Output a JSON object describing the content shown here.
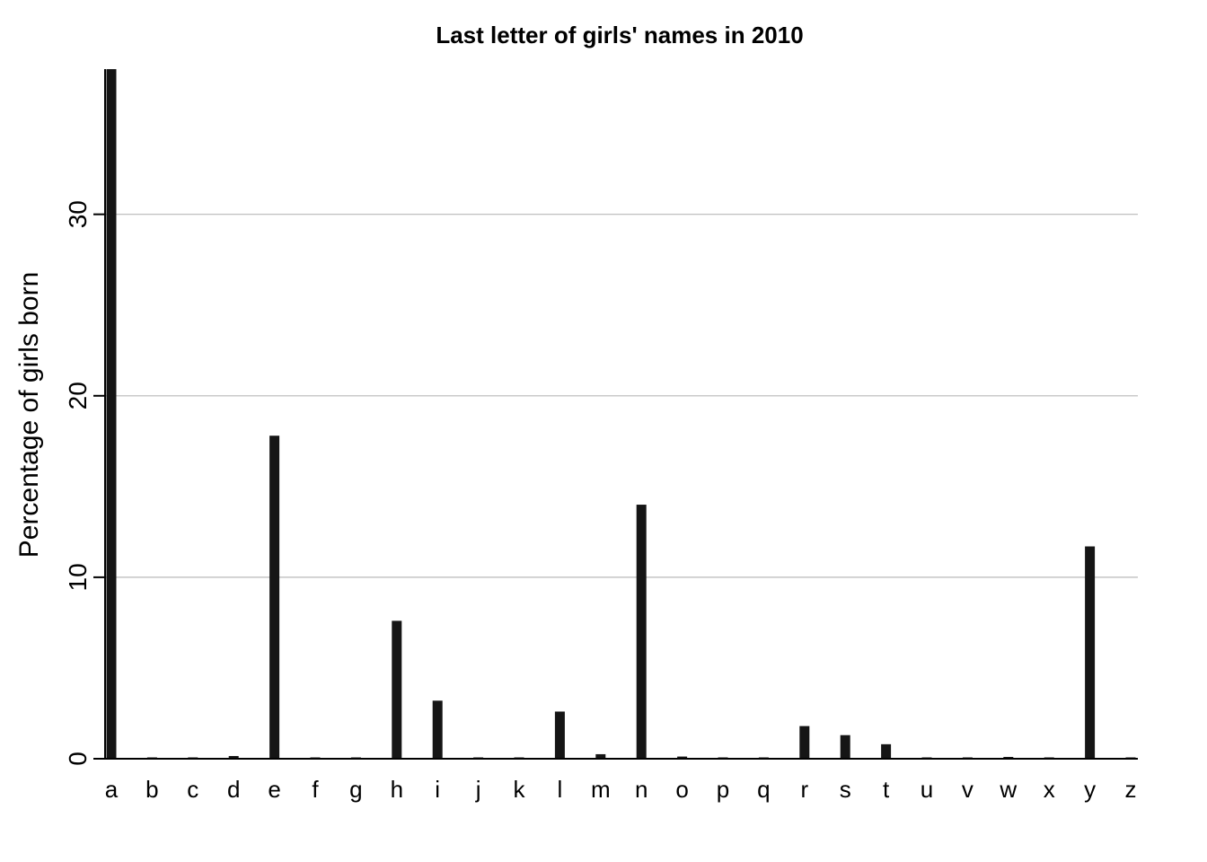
{
  "chart_data": {
    "type": "bar",
    "title": "Last letter of girls' names in 2010",
    "xlabel": "",
    "ylabel": "Percentage of girls born",
    "ylim": [
      0,
      38
    ],
    "yticks": [
      0,
      10,
      20,
      30
    ],
    "grid": true,
    "categories": [
      "a",
      "b",
      "c",
      "d",
      "e",
      "f",
      "g",
      "h",
      "i",
      "j",
      "k",
      "l",
      "m",
      "n",
      "o",
      "p",
      "q",
      "r",
      "s",
      "t",
      "u",
      "v",
      "w",
      "x",
      "y",
      "z"
    ],
    "values": [
      38.2,
      0.03,
      0.05,
      0.15,
      17.8,
      0.02,
      0.04,
      7.6,
      3.2,
      0.02,
      0.04,
      2.6,
      0.25,
      14.0,
      0.12,
      0.02,
      0.03,
      1.8,
      1.3,
      0.8,
      0.04,
      0.02,
      0.1,
      0.05,
      11.7,
      0.05
    ],
    "colors": {
      "bar": "#151515",
      "grid": "#b8b8b8",
      "axis": "#000000"
    }
  }
}
